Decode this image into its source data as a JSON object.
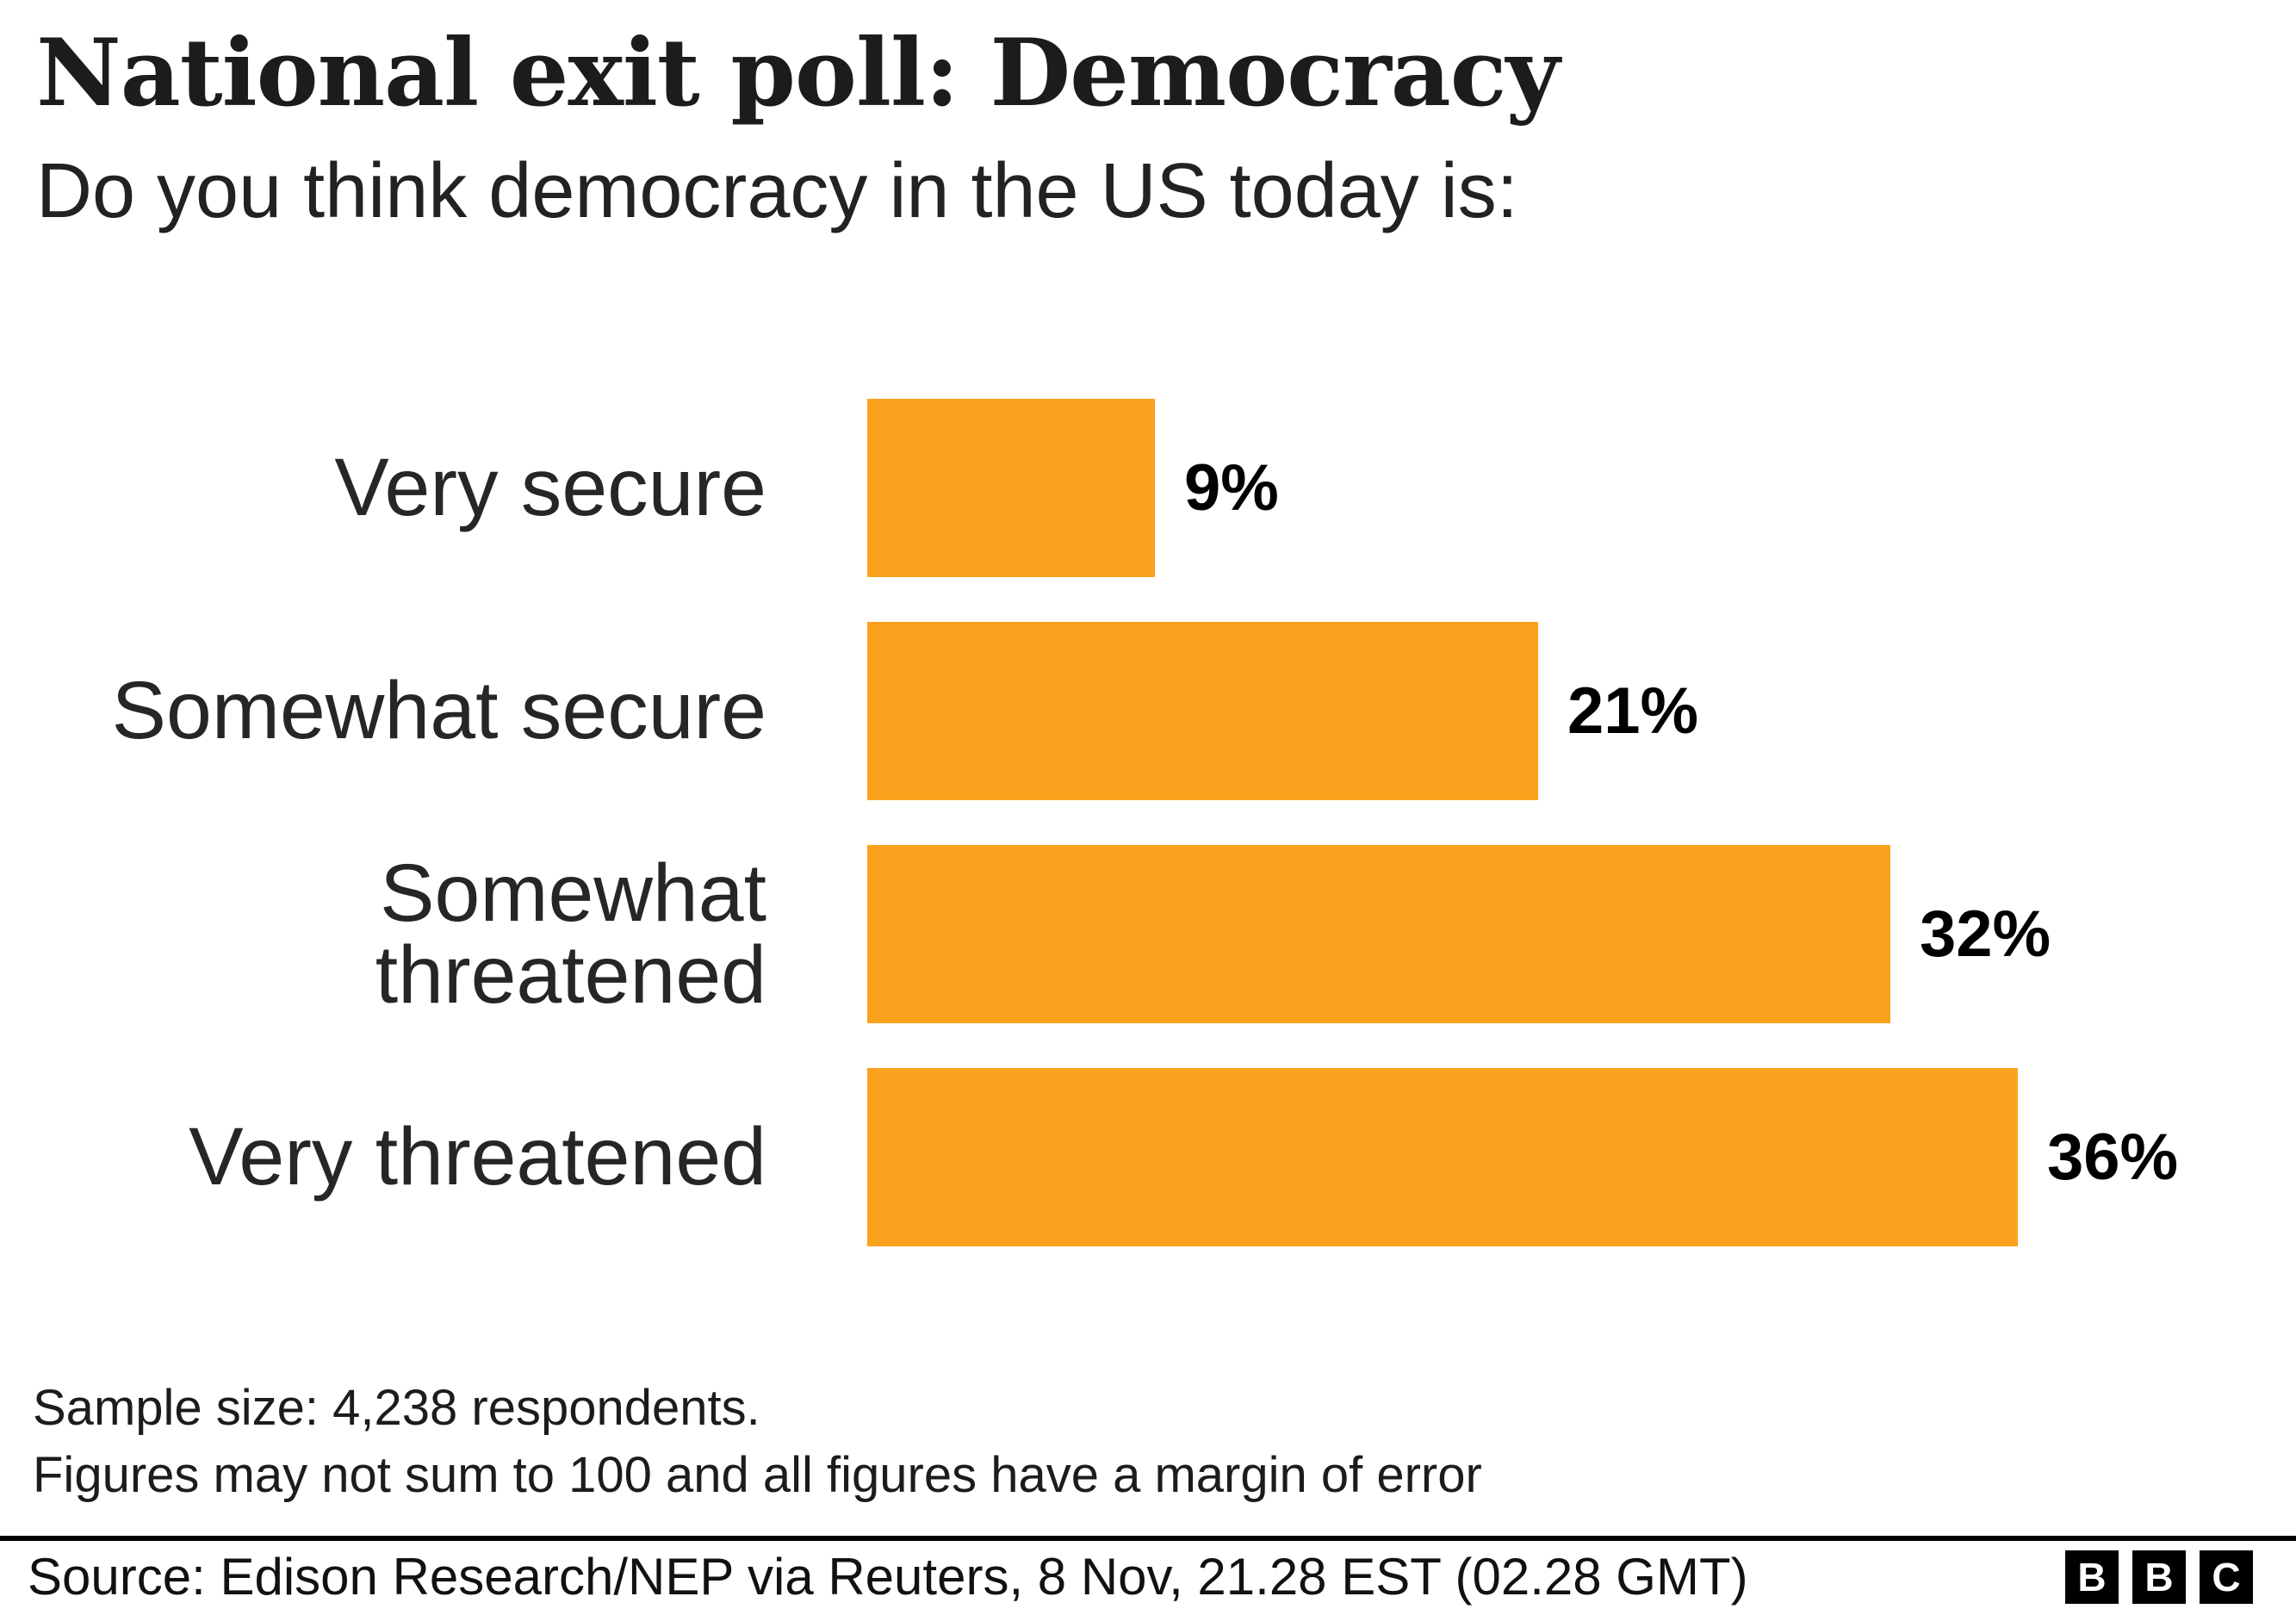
{
  "header": {
    "title": "National exit poll: Democracy",
    "subtitle": "Do you think democracy in the US today is:"
  },
  "chart_data": {
    "type": "bar",
    "orientation": "horizontal",
    "categories": [
      "Very secure",
      "Somewhat secure",
      "Somewhat threatened",
      "Very threatened"
    ],
    "values": [
      9,
      21,
      32,
      36
    ],
    "value_labels": [
      "9%",
      "21%",
      "32%",
      "36%"
    ],
    "bar_color": "#FAA21E",
    "xlim": [
      0,
      36
    ],
    "grid": false,
    "legend": false,
    "title": "National exit poll: Democracy",
    "xlabel": "",
    "ylabel": ""
  },
  "footnotes": {
    "line1": "Sample size: 4,238 respondents.",
    "line2": "Figures may not sum to 100 and all figures have a margin of error"
  },
  "source": {
    "text": "Source: Edison Research/NEP via Reuters, 8 Nov, 21.28 EST (02.28 GMT)",
    "logo_letters": [
      "B",
      "B",
      "C"
    ]
  }
}
